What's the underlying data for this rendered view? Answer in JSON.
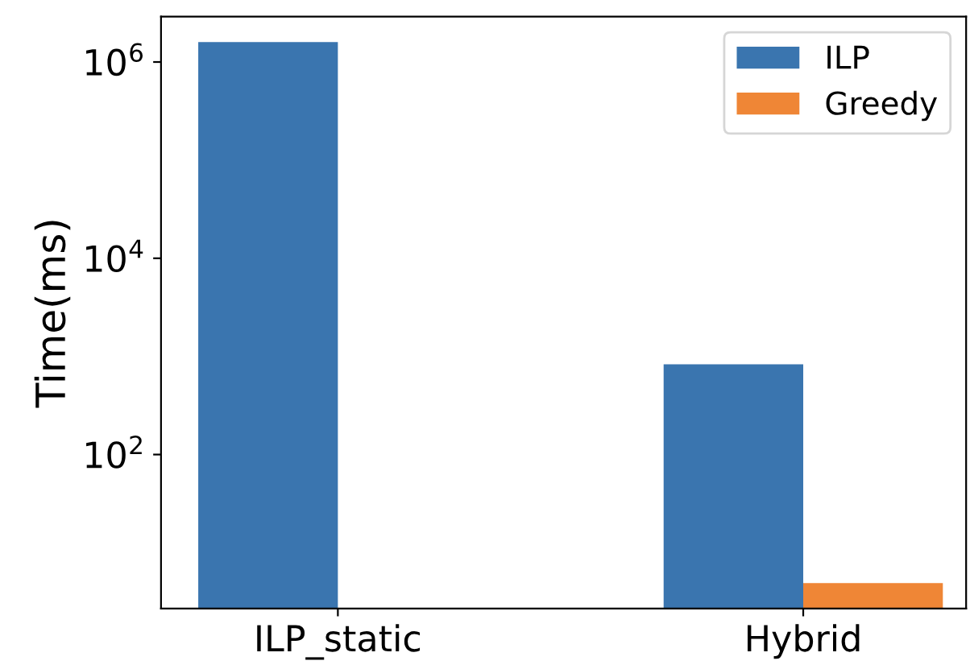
{
  "chart_data": {
    "type": "bar",
    "ylabel": "Time(ms)",
    "categories": [
      "ILP_static",
      "Hybrid"
    ],
    "series": [
      {
        "name": "ILP",
        "color": "#3a75af",
        "values": [
          1600000,
          830
        ]
      },
      {
        "name": "Greedy",
        "color": "#ef8636",
        "values": [
          null,
          4.9
        ]
      }
    ],
    "log": "y",
    "ylim": [
      2.7,
      2900000
    ],
    "yticks": [
      {
        "value": 100,
        "label": "10$^{2}$"
      },
      {
        "value": 10000,
        "label": "10$^{4}$"
      },
      {
        "value": 1000000,
        "label": "10$^{6}$"
      }
    ],
    "grid": false,
    "legend": "top right"
  }
}
